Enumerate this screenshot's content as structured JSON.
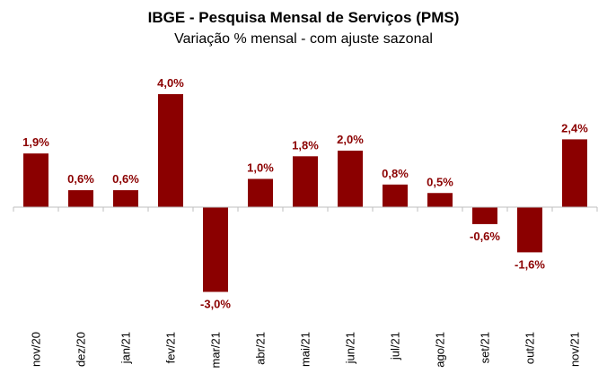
{
  "chart_data": {
    "type": "bar",
    "title": "IBGE - Pesquisa Mensal de Serviços (PMS)",
    "subtitle": "Variação % mensal - com ajuste sazonal",
    "categories": [
      "nov/20",
      "dez/20",
      "jan/21",
      "fev/21",
      "mar/21",
      "abr/21",
      "mai/21",
      "jun/21",
      "jul/21",
      "ago/21",
      "set/21",
      "out/21",
      "nov/21"
    ],
    "values": [
      1.9,
      0.6,
      0.6,
      4.0,
      -3.0,
      1.0,
      1.8,
      2.0,
      0.8,
      0.5,
      -0.6,
      -1.6,
      2.4
    ],
    "value_labels": [
      "1,9%",
      "0,6%",
      "0,6%",
      "4,0%",
      "-3,0%",
      "1,0%",
      "1,8%",
      "2,0%",
      "0,8%",
      "0,5%",
      "-0,6%",
      "-1,6%",
      "2,4%"
    ],
    "bar_color": "#8b0000",
    "label_color": "#8b0000",
    "xlabel": "",
    "ylabel": "",
    "ylim": [
      -3.0,
      4.0
    ],
    "grid": false
  }
}
